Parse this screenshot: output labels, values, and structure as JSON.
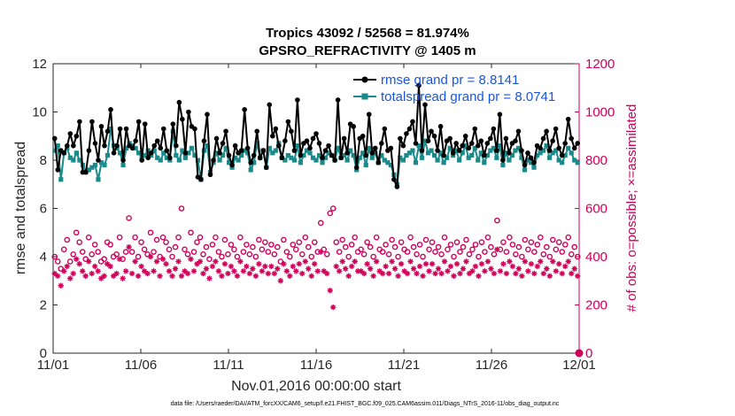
{
  "chart_data": {
    "type": "line",
    "title_line1": "Tropics 43092 / 52568 = 81.974%",
    "title_line2": "GPSRO_REFRACTIVITY @ 1405 m",
    "xlabel": "Nov.01,2016 00:00:00 start",
    "ylabel_left": "rmse and totalspread",
    "ylabel_right": "# of obs: o=possible; ×=assimilated",
    "xlim": [
      0,
      30
    ],
    "ylim_left": [
      0,
      12
    ],
    "ylim_right": [
      0,
      1200
    ],
    "x_tick_values": [
      0,
      5,
      10,
      15,
      20,
      25,
      30
    ],
    "x_tick_labels": [
      "11/01",
      "11/06",
      "11/11",
      "11/16",
      "11/21",
      "11/26",
      "12/01"
    ],
    "y_left_ticks": [
      "0",
      "2",
      "4",
      "6",
      "8",
      "10",
      "12"
    ],
    "y_right_ticks": [
      "0",
      "200",
      "400",
      "600",
      "800",
      "1000",
      "1200"
    ],
    "legend_location": "top-right",
    "series": [
      {
        "name": "rmse grand pr = 8.8141",
        "color": "#000000",
        "marker": "filled-circle",
        "values": [
          8.9,
          7.6,
          8.4,
          8.3,
          8.6,
          9.1,
          8.6,
          9.0,
          9.6,
          7.5,
          7.5,
          8.4,
          9.6,
          8.7,
          8.0,
          9.4,
          8.6,
          9.2,
          10.1,
          8.3,
          8.6,
          9.3,
          8.0,
          9.3,
          8.6,
          8.5,
          8.8,
          9.6,
          8.0,
          9.5,
          8.1,
          8.3,
          8.6,
          8.8,
          8.5,
          9.3,
          8.4,
          8.1,
          9.5,
          8.6,
          10.4,
          9.7,
          8.3,
          10.0,
          9.4,
          9.3,
          7.3,
          7.2,
          8.8,
          9.9,
          7.4,
          8.0,
          8.9,
          8.3,
          8.7,
          9.2,
          8.2,
          7.8,
          8.6,
          8.3,
          8.4,
          10.1,
          8.5,
          7.9,
          8.2,
          9.2,
          8.1,
          8.4,
          7.7,
          10.3,
          9.0,
          9.3,
          8.6,
          8.1,
          8.8,
          9.6,
          9.2,
          8.4,
          10.5,
          8.2,
          8.7,
          8.8,
          8.5,
          8.9,
          9.1,
          8.7,
          8.1,
          8.4,
          8.6,
          8.2,
          8.0,
          10.5,
          8.1,
          8.9,
          8.3,
          9.5,
          9.4,
          7.7,
          8.9,
          9.0,
          8.2,
          9.9,
          8.3,
          8.5,
          7.9,
          8.7,
          9.3,
          8.4,
          8.5,
          7.2,
          6.9,
          8.9,
          8.6,
          9.1,
          9.3,
          9.6,
          8.7,
          11.1,
          8.4,
          10.3,
          8.8,
          9.2,
          9.0,
          8.4,
          9.4,
          8.2,
          8.8,
          8.9,
          8.3,
          8.7,
          8.4,
          8.6,
          9.0,
          8.5,
          8.7,
          9.3,
          8.6,
          8.8,
          8.2,
          8.7,
          8.9,
          9.3,
          8.4,
          9.9,
          8.0,
          8.9,
          8.3,
          8.7,
          8.8,
          9.2,
          8.4,
          7.8,
          8.3,
          8.1,
          7.9,
          8.6,
          8.5,
          8.9,
          9.2,
          8.4,
          8.8,
          9.3,
          8.5,
          8.2,
          8.7,
          9.7,
          8.9,
          8.5,
          8.7
        ],
        "note": "black solid line, one point every 4-hour slice"
      },
      {
        "name": "totalspread grand pr = 8.0741",
        "color": "#1a8a8a",
        "marker": "filled-square",
        "values": [
          8.4,
          8.6,
          7.2,
          8.3,
          8.5,
          8.1,
          8.0,
          8.3,
          8.0,
          7.8,
          7.5,
          7.6,
          7.7,
          7.8,
          7.2,
          7.9,
          7.8,
          8.2,
          9.3,
          8.6,
          8.5,
          8.3,
          7.8,
          8.5,
          8.7,
          8.6,
          8.5,
          8.3,
          8.1,
          8.2,
          8.4,
          8.2,
          8.4,
          8.1,
          8.0,
          8.3,
          8.1,
          8.0,
          9.2,
          8.2,
          8.0,
          8.4,
          8.1,
          8.3,
          8.5,
          8.2,
          8.0,
          7.2,
          8.4,
          8.6,
          7.5,
          7.9,
          8.3,
          8.0,
          8.2,
          8.5,
          7.9,
          7.7,
          8.1,
          8.0,
          8.2,
          8.4,
          8.3,
          7.6,
          7.9,
          8.7,
          8.1,
          8.4,
          7.7,
          8.5,
          8.3,
          8.4,
          8.7,
          8.1,
          8.0,
          8.2,
          8.1,
          8.0,
          8.6,
          7.9,
          8.2,
          8.4,
          8.3,
          8.1,
          8.0,
          8.2,
          7.9,
          8.1,
          8.3,
          8.2,
          8.0,
          8.5,
          8.1,
          8.2,
          8.0,
          8.4,
          8.2,
          7.6,
          8.1,
          8.3,
          7.8,
          8.5,
          8.1,
          8.3,
          7.9,
          8.2,
          8.0,
          7.9,
          7.8,
          7.4,
          7.0,
          8.1,
          8.0,
          8.2,
          8.3,
          8.4,
          7.9,
          8.6,
          8.1,
          8.8,
          8.3,
          8.4,
          8.2,
          8.0,
          8.3,
          7.9,
          8.1,
          8.5,
          8.2,
          8.4,
          8.0,
          8.3,
          8.6,
          8.1,
          8.2,
          8.5,
          8.0,
          8.3,
          7.9,
          8.2,
          8.4,
          8.5,
          8.1,
          8.6,
          7.8,
          8.3,
          8.0,
          8.2,
          8.4,
          8.5,
          8.1,
          7.6,
          8.0,
          7.9,
          7.7,
          8.2,
          8.3,
          8.4,
          8.6,
          8.1,
          8.3,
          8.4,
          8.0,
          7.9,
          8.2,
          8.5,
          8.3,
          8.0,
          7.9
        ]
      },
      {
        "name": "# of obs possible",
        "axis": "right",
        "color": "#d0005a",
        "marker": "open-circle",
        "values": [
          400,
          380,
          350,
          430,
          470,
          380,
          410,
          500,
          460,
          420,
          390,
          480,
          410,
          450,
          420,
          380,
          390,
          460,
          450,
          400,
          410,
          480,
          390,
          420,
          560,
          420,
          480,
          400,
          460,
          430,
          410,
          500,
          420,
          470,
          400,
          480,
          460,
          430,
          400,
          440,
          480,
          600,
          430,
          410,
          500,
          420,
          460,
          480,
          410,
          440,
          390,
          450,
          480,
          420,
          400,
          470,
          410,
          450,
          430,
          400,
          480,
          420,
          450,
          410,
          440,
          400,
          470,
          430,
          460,
          420,
          450,
          410,
          440,
          380,
          470,
          420,
          400,
          450,
          430,
          460,
          410,
          480,
          440,
          400,
          460,
          420,
          540,
          430,
          410,
          580,
          600,
          460,
          420,
          470,
          440,
          400,
          450,
          480,
          420,
          430,
          410,
          460,
          440,
          400,
          480,
          430,
          420,
          450,
          410,
          470,
          440,
          400,
          460,
          430,
          420,
          480,
          440,
          410,
          450,
          400,
          470,
          430,
          460,
          420,
          440,
          410,
          480,
          430,
          450,
          400,
          460,
          420,
          440,
          470,
          410,
          430,
          450,
          400,
          460,
          420,
          480,
          440,
          410,
          550,
          430,
          460,
          420,
          480,
          450,
          410,
          440,
          400,
          470,
          430,
          460,
          420,
          450,
          480,
          410,
          440,
          400,
          470,
          430,
          460,
          420,
          450,
          480,
          410,
          440,
          400
        ]
      },
      {
        "name": "# of obs assimilated",
        "axis": "right",
        "color": "#d0005a",
        "marker": "asterisk",
        "values": [
          330,
          320,
          280,
          340,
          360,
          310,
          330,
          390,
          370,
          340,
          320,
          380,
          330,
          360,
          340,
          310,
          320,
          370,
          360,
          320,
          330,
          390,
          310,
          340,
          440,
          330,
          380,
          320,
          360,
          340,
          330,
          400,
          340,
          380,
          320,
          390,
          370,
          340,
          320,
          350,
          380,
          320,
          340,
          330,
          390,
          340,
          370,
          380,
          330,
          350,
          310,
          360,
          380,
          340,
          320,
          370,
          330,
          360,
          340,
          320,
          380,
          340,
          360,
          330,
          350,
          320,
          370,
          340,
          360,
          330,
          360,
          330,
          350,
          300,
          370,
          340,
          320,
          360,
          340,
          370,
          330,
          380,
          350,
          320,
          370,
          340,
          420,
          340,
          330,
          260,
          190,
          360,
          340,
          380,
          350,
          320,
          360,
          380,
          340,
          340,
          330,
          370,
          350,
          320,
          380,
          340,
          330,
          360,
          330,
          380,
          350,
          320,
          370,
          340,
          330,
          380,
          350,
          330,
          360,
          320,
          370,
          340,
          370,
          330,
          350,
          330,
          380,
          340,
          360,
          320,
          370,
          330,
          350,
          380,
          330,
          340,
          360,
          320,
          370,
          340,
          380,
          350,
          330,
          430,
          340,
          370,
          330,
          380,
          360,
          330,
          350,
          320,
          380,
          340,
          370,
          330,
          360,
          380,
          330,
          350,
          320,
          380,
          340,
          370,
          330,
          360,
          380,
          330,
          350,
          320
        ]
      }
    ],
    "end_marker_value": 0
  },
  "footer": {
    "text": "data file: /Users/raeder/DAI/ATM_forcXX/CAM6_setup/f.e21.FHIST_BGC.f09_025.CAM6assim.011/Diags_NTrS_2016-11/obs_diag_output.nc"
  }
}
